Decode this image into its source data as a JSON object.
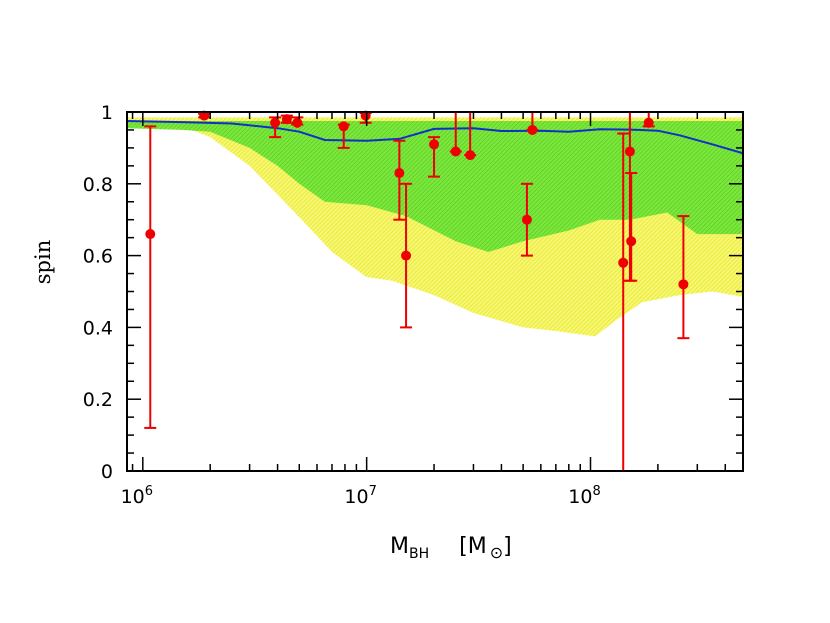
{
  "chart_data": {
    "type": "scatter",
    "title": "",
    "ylabel": "spin",
    "xlabel": {
      "main": "M",
      "sub": "BH",
      "unit_open": "[M",
      "unit_sub": "⊙",
      "unit_close": "]"
    },
    "xscale": "log",
    "xlim": [
      850000.0,
      480000000.0
    ],
    "ylim": [
      0,
      1
    ],
    "xticks": [
      {
        "value": 1000000.0,
        "base": "10",
        "exp": "6"
      },
      {
        "value": 10000000.0,
        "base": "10",
        "exp": "7"
      },
      {
        "value": 100000000.0,
        "base": "10",
        "exp": "8"
      }
    ],
    "yticks": [
      {
        "value": 0,
        "label": "0"
      },
      {
        "value": 0.2,
        "label": "0.2"
      },
      {
        "value": 0.4,
        "label": "0.4"
      },
      {
        "value": 0.6,
        "label": "0.6"
      },
      {
        "value": 0.8,
        "label": "0.8"
      },
      {
        "value": 1,
        "label": "1"
      }
    ],
    "bands": [
      {
        "name": "outer band (yellow)",
        "color": "#f2f25a",
        "upper": [
          [
            850000.0,
            0.985
          ],
          [
            480000000.0,
            0.985
          ]
        ],
        "lower": [
          [
            850000.0,
            0.965
          ],
          [
            1500000.0,
            0.96
          ],
          [
            2000000.0,
            0.93
          ],
          [
            3000000.0,
            0.85
          ],
          [
            4000000.0,
            0.77
          ],
          [
            5500000.0,
            0.68
          ],
          [
            7000000.0,
            0.61
          ],
          [
            10000000.0,
            0.54
          ],
          [
            13000000.0,
            0.53
          ],
          [
            20000000.0,
            0.49
          ],
          [
            30000000.0,
            0.44
          ],
          [
            50000000.0,
            0.4
          ],
          [
            70000000.0,
            0.39
          ],
          [
            105000000.0,
            0.375
          ],
          [
            130000000.0,
            0.42
          ],
          [
            170000000.0,
            0.47
          ],
          [
            250000000.0,
            0.49
          ],
          [
            350000000.0,
            0.5
          ],
          [
            480000000.0,
            0.485
          ]
        ]
      },
      {
        "name": "inner band (green)",
        "color": "#66dd22",
        "upper": [
          [
            850000.0,
            0.975
          ],
          [
            480000000.0,
            0.975
          ]
        ],
        "lower": [
          [
            850000.0,
            0.955
          ],
          [
            1500000.0,
            0.95
          ],
          [
            2000000.0,
            0.945
          ],
          [
            3000000.0,
            0.9
          ],
          [
            4000000.0,
            0.85
          ],
          [
            5000000.0,
            0.8
          ],
          [
            6500000.0,
            0.75
          ],
          [
            10000000.0,
            0.74
          ],
          [
            15000000.0,
            0.71
          ],
          [
            25000000.0,
            0.64
          ],
          [
            35000000.0,
            0.61
          ],
          [
            50000000.0,
            0.64
          ],
          [
            80000000.0,
            0.67
          ],
          [
            110000000.0,
            0.7
          ],
          [
            150000000.0,
            0.7
          ],
          [
            220000000.0,
            0.72
          ],
          [
            300000000.0,
            0.66
          ],
          [
            480000000.0,
            0.66
          ]
        ]
      }
    ],
    "line": {
      "name": "mean spin",
      "color": "#1030c8",
      "x": [
        850000.0,
        1500000.0,
        2500000.0,
        4000000.0,
        5000000.0,
        6500000.0,
        10000000.0,
        14000000.0,
        20000000.0,
        30000000.0,
        40000000.0,
        60000000.0,
        80000000.0,
        110000000.0,
        150000000.0,
        200000000.0,
        250000000.0,
        350000000.0,
        480000000.0
      ],
      "y": [
        0.975,
        0.972,
        0.968,
        0.955,
        0.945,
        0.922,
        0.92,
        0.925,
        0.953,
        0.955,
        0.947,
        0.948,
        0.945,
        0.952,
        0.951,
        0.948,
        0.935,
        0.91,
        0.885
      ]
    },
    "points": {
      "name": "measured spins",
      "color": "#ee0000",
      "series": [
        {
          "x": 1080000.0,
          "y": 0.66,
          "lo": 0.12,
          "hi": 0.96
        },
        {
          "x": 1880000.0,
          "y": 0.99,
          "lo": 0.985,
          "hi": 0.995
        },
        {
          "x": 3900000.0,
          "y": 0.97,
          "lo": 0.93,
          "hi": 0.985
        },
        {
          "x": 4400000.0,
          "y": 0.98,
          "lo": 0.97,
          "hi": 0.99
        },
        {
          "x": 4900000.0,
          "y": 0.97,
          "lo": 0.965,
          "hi": 0.985
        },
        {
          "x": 7900000.0,
          "y": 0.96,
          "lo": 0.9,
          "hi": 0.965
        },
        {
          "x": 9900000.0,
          "y": 0.99,
          "lo": 0.97,
          "hi": 0.997
        },
        {
          "x": 14000000.0,
          "y": 0.83,
          "lo": 0.7,
          "hi": 0.92
        },
        {
          "x": 15000000.0,
          "y": 0.6,
          "lo": 0.4,
          "hi": 0.8
        },
        {
          "x": 20000000.0,
          "y": 0.91,
          "lo": 0.82,
          "hi": 0.93
        },
        {
          "x": 25000000.0,
          "y": 0.89,
          "lo": 0.89,
          "hi": 1.0
        },
        {
          "x": 29000000.0,
          "y": 0.88,
          "lo": 0.88,
          "hi": 1.0
        },
        {
          "x": 52000000.0,
          "y": 0.7,
          "lo": 0.6,
          "hi": 0.8
        },
        {
          "x": 55000000.0,
          "y": 0.95,
          "lo": 0.95,
          "hi": 1.0
        },
        {
          "x": 140000000.0,
          "y": 0.58,
          "lo": 0.0,
          "hi": 0.94
        },
        {
          "x": 150000000.0,
          "y": 0.89,
          "lo": 0.53,
          "hi": 1.0
        },
        {
          "x": 152000000.0,
          "y": 0.64,
          "lo": 0.53,
          "hi": 0.83
        },
        {
          "x": 182000000.0,
          "y": 0.97,
          "lo": 0.96,
          "hi": 1.0
        },
        {
          "x": 260000000.0,
          "y": 0.52,
          "lo": 0.37,
          "hi": 0.71
        }
      ]
    }
  }
}
